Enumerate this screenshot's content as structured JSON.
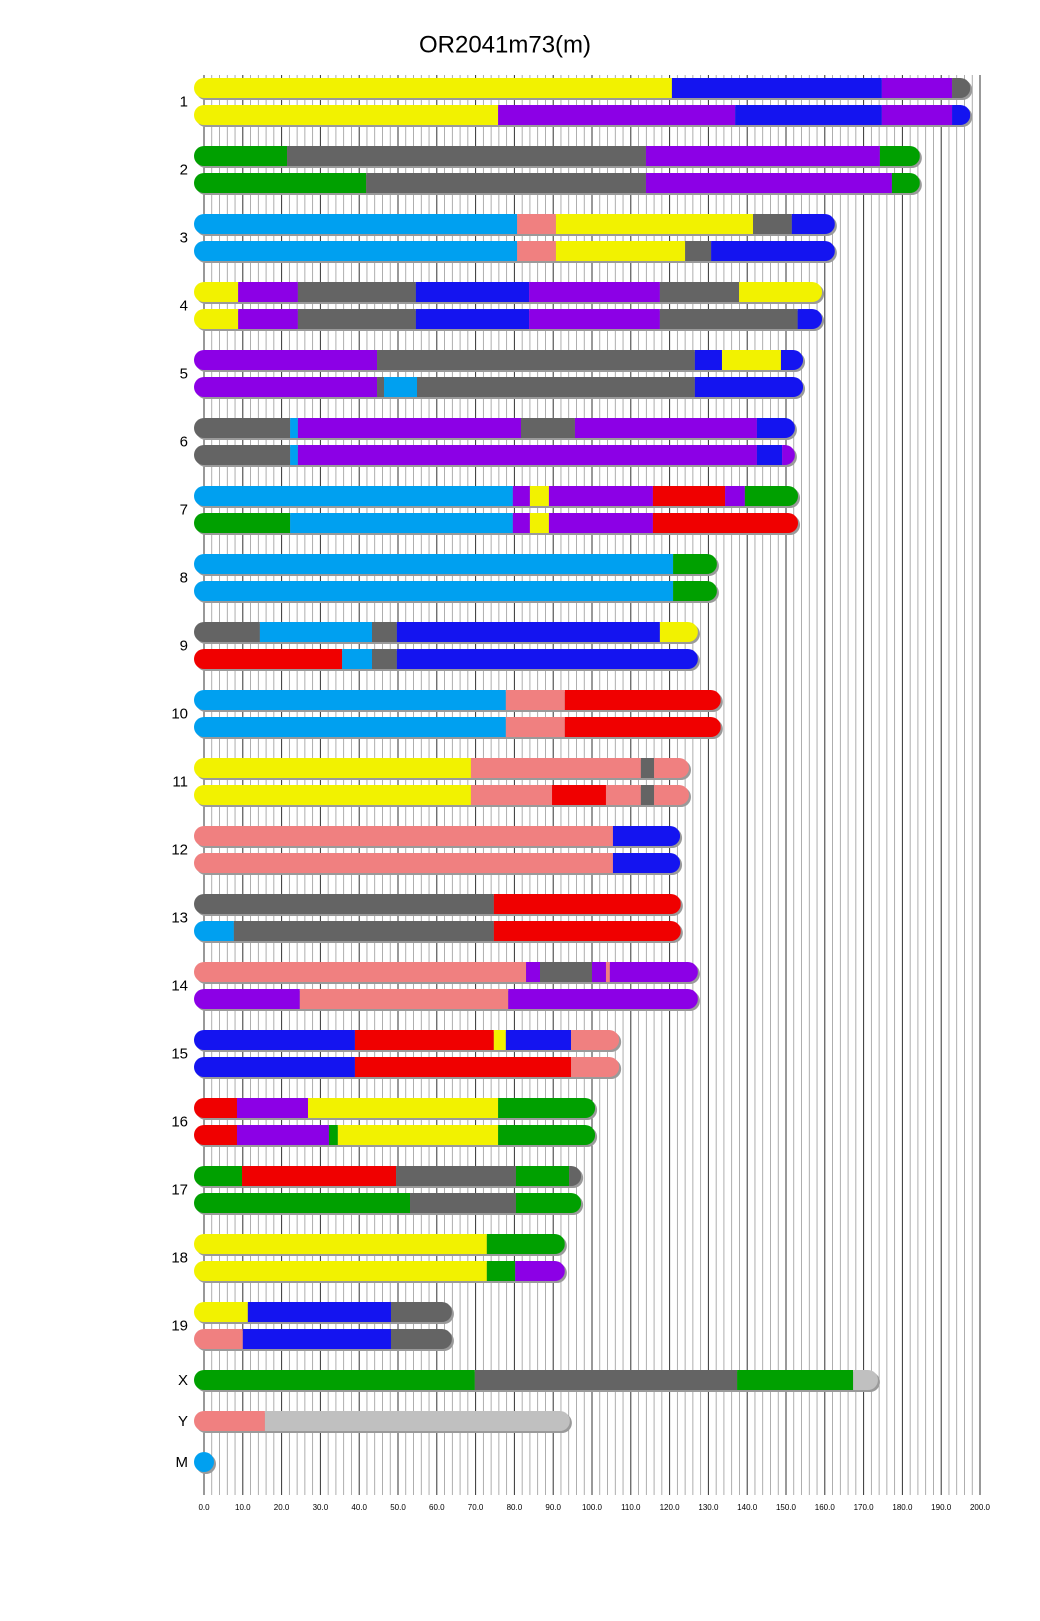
{
  "chart_data": {
    "type": "mosaic",
    "title": "OR2041m73(m)",
    "xlim": [
      0,
      200
    ],
    "xticks": [
      {
        "value": 0,
        "label": "0.0"
      },
      {
        "value": 10,
        "label": "10.0"
      },
      {
        "value": 20,
        "label": "20.0"
      },
      {
        "value": 30,
        "label": "30.0"
      },
      {
        "value": 40,
        "label": "40.0"
      },
      {
        "value": 50,
        "label": "50.0"
      },
      {
        "value": 60,
        "label": "60.0"
      },
      {
        "value": 70,
        "label": "70.0"
      },
      {
        "value": 80,
        "label": "80.0"
      },
      {
        "value": 90,
        "label": "90.0"
      },
      {
        "value": 100,
        "label": "100.0"
      },
      {
        "value": 110,
        "label": "110.0"
      },
      {
        "value": 120,
        "label": "120.0"
      },
      {
        "value": 130,
        "label": "130.0"
      },
      {
        "value": 140,
        "label": "140.0"
      },
      {
        "value": 150,
        "label": "150.0"
      },
      {
        "value": 160,
        "label": "160.0"
      },
      {
        "value": 170,
        "label": "170.0"
      },
      {
        "value": 180,
        "label": "180.0"
      },
      {
        "value": 190,
        "label": "190.0"
      },
      {
        "value": 200,
        "label": "200.0"
      }
    ],
    "grid": true,
    "chromosomes": [
      {
        "label": "1",
        "haplotypes": [
          [
            [
              0,
              120.6,
              "#f2f200"
            ],
            [
              120.6,
              174.7,
              "#1414f0"
            ],
            [
              174.7,
              192.8,
              "#8c00e6"
            ],
            [
              192.8,
              197.5,
              "#646464"
            ]
          ],
          [
            [
              0,
              75.8,
              "#f2f200"
            ],
            [
              75.8,
              136.9,
              "#8c00e6"
            ],
            [
              136.9,
              174.7,
              "#1414f0"
            ],
            [
              174.7,
              192.8,
              "#8c00e6"
            ],
            [
              192.8,
              197.5,
              "#1414f0"
            ]
          ]
        ]
      },
      {
        "label": "2",
        "haplotypes": [
          [
            [
              0,
              21.4,
              "#00a000"
            ],
            [
              21.4,
              113.9,
              "#646464"
            ],
            [
              113.9,
              174.2,
              "#8c00e6"
            ],
            [
              174.2,
              184.5,
              "#00a000"
            ]
          ],
          [
            [
              0,
              41.8,
              "#00a000"
            ],
            [
              41.8,
              113.9,
              "#646464"
            ],
            [
              113.9,
              177.3,
              "#8c00e6"
            ],
            [
              177.3,
              184.5,
              "#00a000"
            ]
          ]
        ]
      },
      {
        "label": "3",
        "haplotypes": [
          [
            [
              0,
              80.7,
              "#00a0f0"
            ],
            [
              80.7,
              90.7,
              "#f08080"
            ],
            [
              90.7,
              141.5,
              "#f2f200"
            ],
            [
              141.5,
              151.5,
              "#646464"
            ],
            [
              151.5,
              162.6,
              "#1414f0"
            ]
          ],
          [
            [
              0,
              80.7,
              "#00a0f0"
            ],
            [
              80.7,
              90.7,
              "#f08080"
            ],
            [
              90.7,
              124,
              "#f2f200"
            ],
            [
              124,
              130.7,
              "#646464"
            ],
            [
              130.7,
              162.6,
              "#1414f0"
            ]
          ]
        ]
      },
      {
        "label": "4",
        "haplotypes": [
          [
            [
              0,
              8.8,
              "#f2f200"
            ],
            [
              8.8,
              24.2,
              "#8c00e6"
            ],
            [
              24.2,
              54.6,
              "#646464"
            ],
            [
              54.6,
              83.8,
              "#1414f0"
            ],
            [
              83.8,
              117.5,
              "#8c00e6"
            ],
            [
              117.5,
              137.9,
              "#646464"
            ],
            [
              137.9,
              159.3,
              "#f2f200"
            ]
          ],
          [
            [
              0,
              8.8,
              "#f2f200"
            ],
            [
              8.8,
              24.2,
              "#8c00e6"
            ],
            [
              24.2,
              54.6,
              "#646464"
            ],
            [
              54.6,
              83.8,
              "#1414f0"
            ],
            [
              83.8,
              117.5,
              "#8c00e6"
            ],
            [
              117.5,
              153,
              "#646464"
            ],
            [
              153,
              159.3,
              "#1414f0"
            ]
          ]
        ]
      },
      {
        "label": "5",
        "haplotypes": [
          [
            [
              0,
              44.6,
              "#8c00e6"
            ],
            [
              44.6,
              126.5,
              "#646464"
            ],
            [
              126.5,
              133.5,
              "#1414f0"
            ],
            [
              133.5,
              148.7,
              "#f2f200"
            ],
            [
              148.7,
              154.4,
              "#1414f0"
            ]
          ],
          [
            [
              0,
              44.6,
              "#8c00e6"
            ],
            [
              44.6,
              46.4,
              "#646464"
            ],
            [
              46.4,
              54.9,
              "#00a0f0"
            ],
            [
              54.9,
              126.5,
              "#646464"
            ],
            [
              126.5,
              154.4,
              "#1414f0"
            ]
          ]
        ]
      },
      {
        "label": "6",
        "haplotypes": [
          [
            [
              0,
              22.2,
              "#646464"
            ],
            [
              22.2,
              24.2,
              "#00a0f0"
            ],
            [
              24.2,
              81.7,
              "#8c00e6"
            ],
            [
              81.7,
              95.6,
              "#646464"
            ],
            [
              95.6,
              142.5,
              "#8c00e6"
            ],
            [
              142.5,
              152.3,
              "#1414f0"
            ]
          ],
          [
            [
              0,
              22.2,
              "#646464"
            ],
            [
              22.2,
              24.2,
              "#00a0f0"
            ],
            [
              24.2,
              142.5,
              "#8c00e6"
            ],
            [
              142.5,
              149,
              "#1414f0"
            ],
            [
              149,
              152.3,
              "#8c00e6"
            ]
          ]
        ]
      },
      {
        "label": "7",
        "haplotypes": [
          [
            [
              0,
              79.6,
              "#00a0f0"
            ],
            [
              79.6,
              84,
              "#8c00e6"
            ],
            [
              84,
              88.9,
              "#f2f200"
            ],
            [
              88.9,
              115.7,
              "#8c00e6"
            ],
            [
              115.7,
              134.3,
              "#f00000"
            ],
            [
              134.3,
              139.4,
              "#8c00e6"
            ],
            [
              139.4,
              153.1,
              "#00a000"
            ]
          ],
          [
            [
              0,
              22.2,
              "#00a000"
            ],
            [
              22.2,
              79.6,
              "#00a0f0"
            ],
            [
              79.6,
              84,
              "#8c00e6"
            ],
            [
              84,
              88.9,
              "#f2f200"
            ],
            [
              88.9,
              115.7,
              "#8c00e6"
            ],
            [
              115.7,
              153.1,
              "#f00000"
            ]
          ]
        ]
      },
      {
        "label": "8",
        "haplotypes": [
          [
            [
              0,
              120.9,
              "#00a0f0"
            ],
            [
              120.9,
              132.2,
              "#00a000"
            ]
          ],
          [
            [
              0,
              120.9,
              "#00a0f0"
            ],
            [
              120.9,
              132.2,
              "#00a000"
            ]
          ]
        ]
      },
      {
        "label": "9",
        "haplotypes": [
          [
            [
              0,
              14.4,
              "#646464"
            ],
            [
              14.4,
              43.3,
              "#00a0f0"
            ],
            [
              43.3,
              49.7,
              "#646464"
            ],
            [
              49.7,
              117.5,
              "#1414f0"
            ],
            [
              117.5,
              127.3,
              "#f2f200"
            ]
          ],
          [
            [
              0,
              35.6,
              "#f00000"
            ],
            [
              35.6,
              43.3,
              "#00a0f0"
            ],
            [
              43.3,
              49.7,
              "#646464"
            ],
            [
              49.7,
              127.3,
              "#1414f0"
            ]
          ]
        ]
      },
      {
        "label": "10",
        "haplotypes": [
          [
            [
              0,
              77.8,
              "#00a0f0"
            ],
            [
              77.8,
              93,
              "#f08080"
            ],
            [
              93,
              133.2,
              "#f00000"
            ]
          ],
          [
            [
              0,
              77.8,
              "#00a0f0"
            ],
            [
              77.8,
              93,
              "#f08080"
            ],
            [
              93,
              133.2,
              "#f00000"
            ]
          ]
        ]
      },
      {
        "label": "11",
        "haplotypes": [
          [
            [
              0,
              68.8,
              "#f2f200"
            ],
            [
              68.8,
              112.6,
              "#f08080"
            ],
            [
              112.6,
              116,
              "#646464"
            ],
            [
              116,
              125,
              "#f08080"
            ]
          ],
          [
            [
              0,
              68.8,
              "#f2f200"
            ],
            [
              68.8,
              89.7,
              "#f08080"
            ],
            [
              89.7,
              103.6,
              "#f00000"
            ],
            [
              103.6,
              112.6,
              "#f08080"
            ],
            [
              112.6,
              116,
              "#646464"
            ],
            [
              116,
              125,
              "#f08080"
            ]
          ]
        ]
      },
      {
        "label": "12",
        "haplotypes": [
          [
            [
              0,
              105.4,
              "#f08080"
            ],
            [
              105.4,
              122.7,
              "#1414f0"
            ]
          ],
          [
            [
              0,
              105.4,
              "#f08080"
            ],
            [
              105.4,
              122.7,
              "#1414f0"
            ]
          ]
        ]
      },
      {
        "label": "13",
        "haplotypes": [
          [
            [
              0,
              74.7,
              "#646464"
            ],
            [
              74.7,
              122.9,
              "#f00000"
            ]
          ],
          [
            [
              0,
              7.7,
              "#00a0f0"
            ],
            [
              7.7,
              74.7,
              "#646464"
            ],
            [
              74.7,
              122.9,
              "#f00000"
            ]
          ]
        ]
      },
      {
        "label": "14",
        "haplotypes": [
          [
            [
              0,
              83,
              "#f08080"
            ],
            [
              83,
              86.6,
              "#8c00e6"
            ],
            [
              86.6,
              100,
              "#646464"
            ],
            [
              100,
              103.6,
              "#8c00e6"
            ],
            [
              103.6,
              104.6,
              "#f08080"
            ],
            [
              104.6,
              127.3,
              "#8c00e6"
            ]
          ],
          [
            [
              0,
              24.7,
              "#8c00e6"
            ],
            [
              24.7,
              78.4,
              "#f08080"
            ],
            [
              78.4,
              127.3,
              "#8c00e6"
            ]
          ]
        ]
      },
      {
        "label": "15",
        "haplotypes": [
          [
            [
              0,
              38.9,
              "#1414f0"
            ],
            [
              38.9,
              74.7,
              "#f00000"
            ],
            [
              74.7,
              77.8,
              "#f2f200"
            ],
            [
              77.8,
              94.6,
              "#1414f0"
            ],
            [
              94.6,
              107,
              "#f08080"
            ]
          ],
          [
            [
              0,
              38.9,
              "#1414f0"
            ],
            [
              38.9,
              94.6,
              "#f00000"
            ],
            [
              94.6,
              107,
              "#f08080"
            ]
          ]
        ]
      },
      {
        "label": "16",
        "haplotypes": [
          [
            [
              0,
              8.5,
              "#f00000"
            ],
            [
              8.5,
              26.8,
              "#8c00e6"
            ],
            [
              26.8,
              75.8,
              "#f2f200"
            ],
            [
              75.8,
              100.8,
              "#00a000"
            ]
          ],
          [
            [
              0,
              8.5,
              "#f00000"
            ],
            [
              8.5,
              32.2,
              "#8c00e6"
            ],
            [
              32.2,
              34.5,
              "#00a000"
            ],
            [
              34.5,
              75.8,
              "#f2f200"
            ],
            [
              75.8,
              100.8,
              "#00a000"
            ]
          ]
        ]
      },
      {
        "label": "17",
        "haplotypes": [
          [
            [
              0,
              9.8,
              "#00a000"
            ],
            [
              9.8,
              49.5,
              "#f00000"
            ],
            [
              49.5,
              80.4,
              "#646464"
            ],
            [
              80.4,
              94.1,
              "#00a000"
            ],
            [
              94.1,
              97.2,
              "#646464"
            ]
          ],
          [
            [
              0,
              53.1,
              "#00a000"
            ],
            [
              53.1,
              80.4,
              "#646464"
            ],
            [
              80.4,
              97.2,
              "#00a000"
            ]
          ]
        ]
      },
      {
        "label": "18",
        "haplotypes": [
          [
            [
              0,
              72.9,
              "#f2f200"
            ],
            [
              72.9,
              93,
              "#00a000"
            ]
          ],
          [
            [
              0,
              72.9,
              "#f2f200"
            ],
            [
              72.9,
              80.2,
              "#00a000"
            ],
            [
              80.2,
              93,
              "#8c00e6"
            ]
          ]
        ]
      },
      {
        "label": "19",
        "haplotypes": [
          [
            [
              0,
              11.3,
              "#f2f200"
            ],
            [
              11.3,
              48.2,
              "#1414f0"
            ],
            [
              48.2,
              63.9,
              "#646464"
            ]
          ],
          [
            [
              0,
              10,
              "#f08080"
            ],
            [
              10,
              48.2,
              "#1414f0"
            ],
            [
              48.2,
              63.9,
              "#646464"
            ]
          ]
        ]
      },
      {
        "label": "X",
        "haplotypes": [
          [
            [
              0,
              69.8,
              "#00a000"
            ],
            [
              69.8,
              137.4,
              "#646464"
            ],
            [
              137.4,
              167.3,
              "#00a000"
            ],
            [
              167.3,
              173.7,
              "#c0c0c0"
            ]
          ]
        ]
      },
      {
        "label": "Y",
        "haplotypes": [
          [
            [
              0,
              15.7,
              "#f08080"
            ],
            [
              15.7,
              94.3,
              "#c0c0c0"
            ]
          ]
        ]
      },
      {
        "label": "M",
        "haplotypes": [
          [
            [
              0,
              0.02,
              "#00a0f0"
            ]
          ]
        ]
      }
    ]
  }
}
